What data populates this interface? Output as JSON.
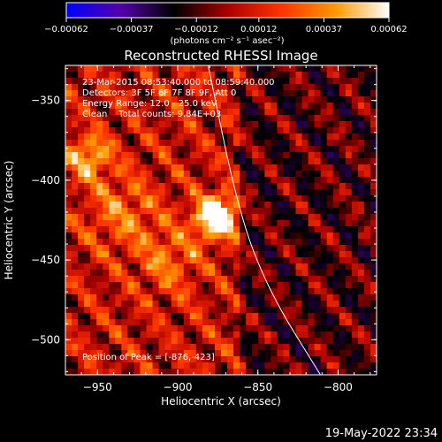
{
  "chart_data": {
    "type": "heatmap",
    "title": "Reconstructed RHESSI Image",
    "xlabel": "Heliocentric X (arcsec)",
    "ylabel": "Heliocentric Y (arcsec)",
    "xlim": [
      -970,
      -776
    ],
    "ylim": [
      -522,
      -328
    ],
    "x_ticks": [
      {
        "value": -950,
        "label": "−950"
      },
      {
        "value": -900,
        "label": "−900"
      },
      {
        "value": -850,
        "label": "−850"
      },
      {
        "value": -800,
        "label": "−800"
      }
    ],
    "y_ticks": [
      {
        "value": -350,
        "label": "−350"
      },
      {
        "value": -400,
        "label": "−400"
      },
      {
        "value": -450,
        "label": "−450"
      },
      {
        "value": -500,
        "label": "−500"
      }
    ],
    "colorbar": {
      "range": [
        -0.00062,
        0.00062
      ],
      "ticks": [
        {
          "value": -0.00062,
          "label": "−0.00062"
        },
        {
          "value": -0.00037,
          "label": "−0.00037"
        },
        {
          "value": -0.00012,
          "label": "−0.00012"
        },
        {
          "value": 0.00012,
          "label": "0.00012"
        },
        {
          "value": 0.00037,
          "label": "0.00037"
        },
        {
          "value": 0.00062,
          "label": "0.00062"
        }
      ],
      "unit_label": "(photons cm⁻² s⁻¹ asec⁻²)",
      "colors": [
        "#0000ff",
        "#5500aa",
        "#000000",
        "#aa0000",
        "#ff3300",
        "#ff9900",
        "#ffffff"
      ]
    },
    "info_lines": [
      "23-Mar-2015 08:53:40.000 to 08:59:40.000",
      "Detectors: 3F 5F 6F 7F 8F 9F, Att 0",
      "Energy Range: 12.0 - 25.0 keV",
      "Clean    Total counts: 9.84E+03"
    ],
    "peak_label": "Position of Peak = [-876,-423]",
    "peak": {
      "x": -876,
      "y": -423
    },
    "limb_curve": [
      {
        "x": -881,
        "y": -328
      },
      {
        "x": -862,
        "y": -420
      },
      {
        "x": -843,
        "y": -470
      },
      {
        "x": -811,
        "y": -522
      }
    ],
    "sources": [
      {
        "x": -876,
        "y": -423,
        "amp": 1.0,
        "sigma": 9
      },
      {
        "x": -955,
        "y": -385,
        "amp": 0.55,
        "sigma": 9
      },
      {
        "x": -905,
        "y": -450,
        "amp": 0.3,
        "sigma": 14
      },
      {
        "x": -935,
        "y": -420,
        "amp": 0.3,
        "sigma": 16
      }
    ]
  },
  "timestamp": "19-May-2022 23:34"
}
